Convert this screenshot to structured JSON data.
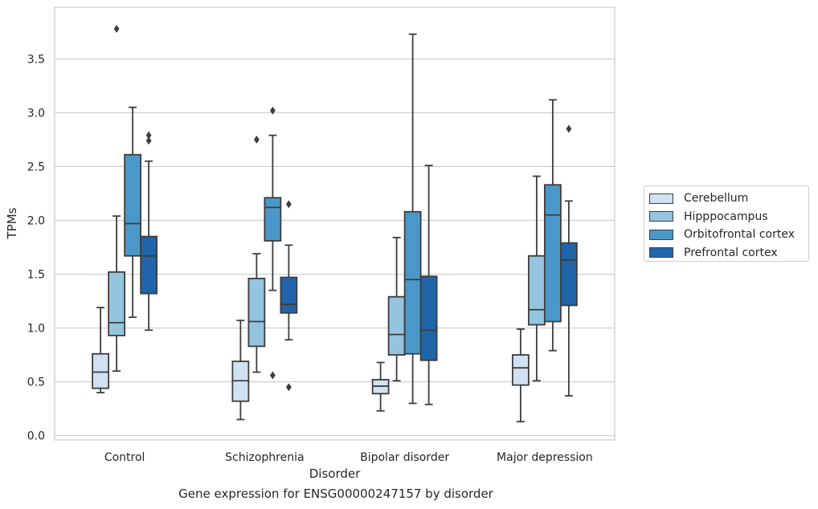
{
  "chart_data": {
    "type": "box",
    "title": "Gene expression for ENSG00000247157 by disorder",
    "xlabel": "Disorder",
    "ylabel": "TPMs",
    "ylim": [
      -0.04,
      3.98
    ],
    "yticks": [
      "0.0",
      "0.5",
      "1.0",
      "1.5",
      "2.0",
      "2.5",
      "3.0",
      "3.5"
    ],
    "grid": "horizontal",
    "legend_position": "right",
    "categories": [
      "Control",
      "Schizophrenia",
      "Bipolar disorder",
      "Major depression"
    ],
    "series": [
      {
        "name": "Cerebellum",
        "color": "#d0e1f2",
        "boxes": [
          {
            "whislo": 0.4,
            "q1": 0.44,
            "med": 0.59,
            "q3": 0.76,
            "whishi": 1.19,
            "fliers": []
          },
          {
            "whislo": 0.15,
            "q1": 0.32,
            "med": 0.51,
            "q3": 0.69,
            "whishi": 1.07,
            "fliers": []
          },
          {
            "whislo": 0.23,
            "q1": 0.39,
            "med": 0.46,
            "q3": 0.52,
            "whishi": 0.68,
            "fliers": []
          },
          {
            "whislo": 0.13,
            "q1": 0.47,
            "med": 0.63,
            "q3": 0.75,
            "whishi": 0.99,
            "fliers": []
          }
        ]
      },
      {
        "name": "Hipppocampus",
        "color": "#94c4df",
        "boxes": [
          {
            "whislo": 0.6,
            "q1": 0.93,
            "med": 1.05,
            "q3": 1.52,
            "whishi": 2.04,
            "fliers": [
              3.78
            ]
          },
          {
            "whislo": 0.59,
            "q1": 0.83,
            "med": 1.06,
            "q3": 1.46,
            "whishi": 1.69,
            "fliers": [
              2.75
            ]
          },
          {
            "whislo": 0.51,
            "q1": 0.75,
            "med": 0.94,
            "q3": 1.29,
            "whishi": 1.84,
            "fliers": []
          },
          {
            "whislo": 0.51,
            "q1": 1.03,
            "med": 1.17,
            "q3": 1.67,
            "whishi": 2.41,
            "fliers": []
          }
        ]
      },
      {
        "name": "Orbitofrontal cortex",
        "color": "#4a98c9",
        "boxes": [
          {
            "whislo": 1.1,
            "q1": 1.67,
            "med": 1.97,
            "q3": 2.61,
            "whishi": 3.05,
            "fliers": []
          },
          {
            "whislo": 1.35,
            "q1": 1.81,
            "med": 2.12,
            "q3": 2.21,
            "whishi": 2.79,
            "fliers": [
              3.02,
              0.56
            ]
          },
          {
            "whislo": 0.3,
            "q1": 0.76,
            "med": 1.45,
            "q3": 2.08,
            "whishi": 3.73,
            "fliers": []
          },
          {
            "whislo": 0.79,
            "q1": 1.06,
            "med": 2.05,
            "q3": 2.33,
            "whishi": 3.12,
            "fliers": []
          }
        ]
      },
      {
        "name": "Prefrontal cortex",
        "color": "#2064aa",
        "boxes": [
          {
            "whislo": 0.98,
            "q1": 1.32,
            "med": 1.67,
            "q3": 1.85,
            "whishi": 2.55,
            "fliers": [
              2.79,
              2.74
            ]
          },
          {
            "whislo": 0.89,
            "q1": 1.14,
            "med": 1.22,
            "q3": 1.47,
            "whishi": 1.77,
            "fliers": [
              2.15,
              0.45
            ]
          },
          {
            "whislo": 0.29,
            "q1": 0.7,
            "med": 0.98,
            "q3": 1.48,
            "whishi": 2.51,
            "fliers": []
          },
          {
            "whislo": 0.37,
            "q1": 1.21,
            "med": 1.63,
            "q3": 1.79,
            "whishi": 2.18,
            "fliers": [
              2.85
            ]
          }
        ]
      }
    ]
  }
}
